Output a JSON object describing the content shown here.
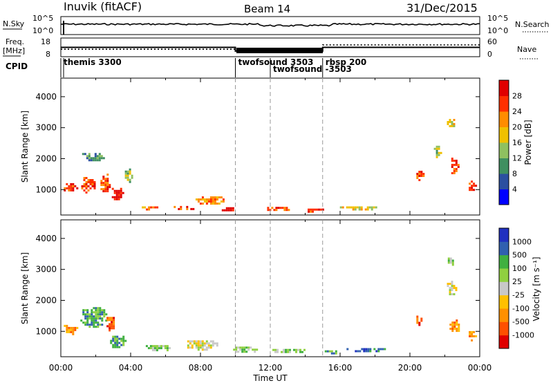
{
  "header": {
    "station": "Inuvik (fitACF)",
    "beam": "Beam 14",
    "date": "31/Dec/2015"
  },
  "chart_data": [
    {
      "type": "line",
      "panel": "noise",
      "left_label": "N.Sky",
      "right_label": "N.Search",
      "yticks_left": [
        "10^5",
        "10^0"
      ],
      "yticks_right": [
        "10^5",
        "10^0"
      ],
      "note": "noise level series (N.Sky solid, N.Search dotted)"
    },
    {
      "type": "line",
      "panel": "freq-nave",
      "left_label_1": "Freq.",
      "left_label_2": "[MHz]",
      "right_label": "Nave",
      "yticks_left": [
        "18",
        "8"
      ],
      "yticks_right": [
        "60",
        "0"
      ],
      "freq_series": {
        "x": [
          "00:00",
          "10:00",
          "10:00",
          "15:00",
          "15:00",
          "24:00"
        ],
        "y": [
          13,
          13,
          11,
          11,
          13,
          13
        ]
      },
      "nave_series": {
        "x": [
          "00:00",
          "15:00",
          "15:00",
          "24:00"
        ],
        "y": [
          24,
          24,
          38,
          38
        ]
      }
    },
    {
      "type": "table",
      "panel": "cpid",
      "label": "CPID",
      "segments": [
        {
          "label": "themis 3300",
          "start_hour": 0
        },
        {
          "label": "twofsound 3503",
          "start_hour": 10
        },
        {
          "label": "twofsound -3503",
          "start_hour": 12
        },
        {
          "label": "rbsp 200",
          "start_hour": 15
        }
      ]
    },
    {
      "type": "heatmap",
      "panel": "power",
      "ylabel": "Slant Range [km]",
      "yticks": [
        1000,
        2000,
        3000,
        4000
      ],
      "ylim": [
        180,
        4600
      ],
      "colorbar_label": "Power [dB]",
      "colorbar_ticks": [
        "28",
        "24",
        "20",
        "16",
        "12",
        "8",
        "4"
      ],
      "colors": [
        "#0000ff",
        "#2b4fa0",
        "#3f8f60",
        "#8fc060",
        "#f0c000",
        "#ff8c00",
        "#ff3000",
        "#e00000"
      ],
      "blobs": [
        {
          "hour": 0.5,
          "range": 1100,
          "dh": 0.9,
          "dr": 350,
          "level": 6
        },
        {
          "hour": 1.5,
          "range": 1200,
          "dh": 0.9,
          "dr": 550,
          "level": 6
        },
        {
          "hour": 2.5,
          "range": 1300,
          "dh": 0.7,
          "dr": 700,
          "level": 6
        },
        {
          "hour": 3.2,
          "range": 900,
          "dh": 0.8,
          "dr": 450,
          "level": 7
        },
        {
          "hour": 1.8,
          "range": 2100,
          "dh": 1.4,
          "dr": 300,
          "level": 2
        },
        {
          "hour": 3.8,
          "range": 1500,
          "dh": 0.5,
          "dr": 500,
          "level": 3
        },
        {
          "hour": 5,
          "range": 450,
          "dh": 1.2,
          "dr": 150,
          "level": 5
        },
        {
          "hour": 7,
          "range": 450,
          "dh": 1.3,
          "dr": 180,
          "level": 6
        },
        {
          "hour": 8.5,
          "range": 700,
          "dh": 1.8,
          "dr": 300,
          "level": 5
        },
        {
          "hour": 9.5,
          "range": 400,
          "dh": 0.8,
          "dr": 200,
          "level": 7
        },
        {
          "hour": 12.5,
          "range": 420,
          "dh": 1.6,
          "dr": 180,
          "level": 6
        },
        {
          "hour": 14.5,
          "range": 380,
          "dh": 1.2,
          "dr": 150,
          "level": 6
        },
        {
          "hour": 17,
          "range": 450,
          "dh": 2.5,
          "dr": 150,
          "level": 4
        },
        {
          "hour": 20.5,
          "range": 1500,
          "dh": 0.5,
          "dr": 350,
          "level": 6
        },
        {
          "hour": 21.5,
          "range": 2300,
          "dh": 0.5,
          "dr": 500,
          "level": 3
        },
        {
          "hour": 22.5,
          "range": 1800,
          "dh": 0.5,
          "dr": 600,
          "level": 6
        },
        {
          "hour": 23.5,
          "range": 1200,
          "dh": 0.5,
          "dr": 450,
          "level": 6
        },
        {
          "hour": 22.3,
          "range": 3200,
          "dh": 0.6,
          "dr": 300,
          "level": 4
        }
      ]
    },
    {
      "type": "heatmap",
      "panel": "velocity",
      "ylabel": "Slant Range [km]",
      "yticks": [
        1000,
        2000,
        3000,
        4000
      ],
      "ylim": [
        180,
        4600
      ],
      "colorbar_label": "Velocity [m s⁻¹]",
      "colorbar_ticks": [
        "1000",
        "500",
        "100",
        "25",
        "-25",
        "-100",
        "-500",
        "-1000"
      ],
      "colors": [
        "#e00000",
        "#ff5000",
        "#ff9000",
        "#ffc000",
        "#c8c8c8",
        "#90d040",
        "#40b040",
        "#3060b0",
        "#2030c0"
      ],
      "xticks": [
        "00:00",
        "04:00",
        "08:00",
        "12:00",
        "16:00",
        "20:00",
        "00:00"
      ],
      "xlabel": "Time UT",
      "blobs": [
        {
          "hour": 0.5,
          "range": 1100,
          "dh": 0.9,
          "dr": 350,
          "level": 2
        },
        {
          "hour": 1.8,
          "range": 1500,
          "dh": 1.6,
          "dr": 700,
          "level": 6
        },
        {
          "hour": 2.8,
          "range": 1300,
          "dh": 0.6,
          "dr": 600,
          "level": 1
        },
        {
          "hour": 3.2,
          "range": 700,
          "dh": 1,
          "dr": 450,
          "level": 6
        },
        {
          "hour": 5.5,
          "range": 500,
          "dh": 1.5,
          "dr": 250,
          "level": 5
        },
        {
          "hour": 8,
          "range": 600,
          "dh": 2,
          "dr": 350,
          "level": 4
        },
        {
          "hour": 10.5,
          "range": 450,
          "dh": 1.5,
          "dr": 250,
          "level": 5
        },
        {
          "hour": 13,
          "range": 400,
          "dh": 2,
          "dr": 200,
          "level": 5
        },
        {
          "hour": 15.5,
          "range": 380,
          "dh": 1,
          "dr": 150,
          "level": 6
        },
        {
          "hour": 17.5,
          "range": 450,
          "dh": 2.5,
          "dr": 150,
          "level": 7
        },
        {
          "hour": 20.5,
          "range": 1400,
          "dh": 0.5,
          "dr": 350,
          "level": 1
        },
        {
          "hour": 22.3,
          "range": 2400,
          "dh": 0.6,
          "dr": 600,
          "level": 4
        },
        {
          "hour": 22.5,
          "range": 1200,
          "dh": 0.7,
          "dr": 500,
          "level": 2
        },
        {
          "hour": 23.5,
          "range": 900,
          "dh": 0.5,
          "dr": 350,
          "level": 2
        },
        {
          "hour": 22.3,
          "range": 3300,
          "dh": 0.5,
          "dr": 300,
          "level": 5
        }
      ]
    }
  ],
  "boundaries_hours": [
    10,
    12,
    15
  ]
}
